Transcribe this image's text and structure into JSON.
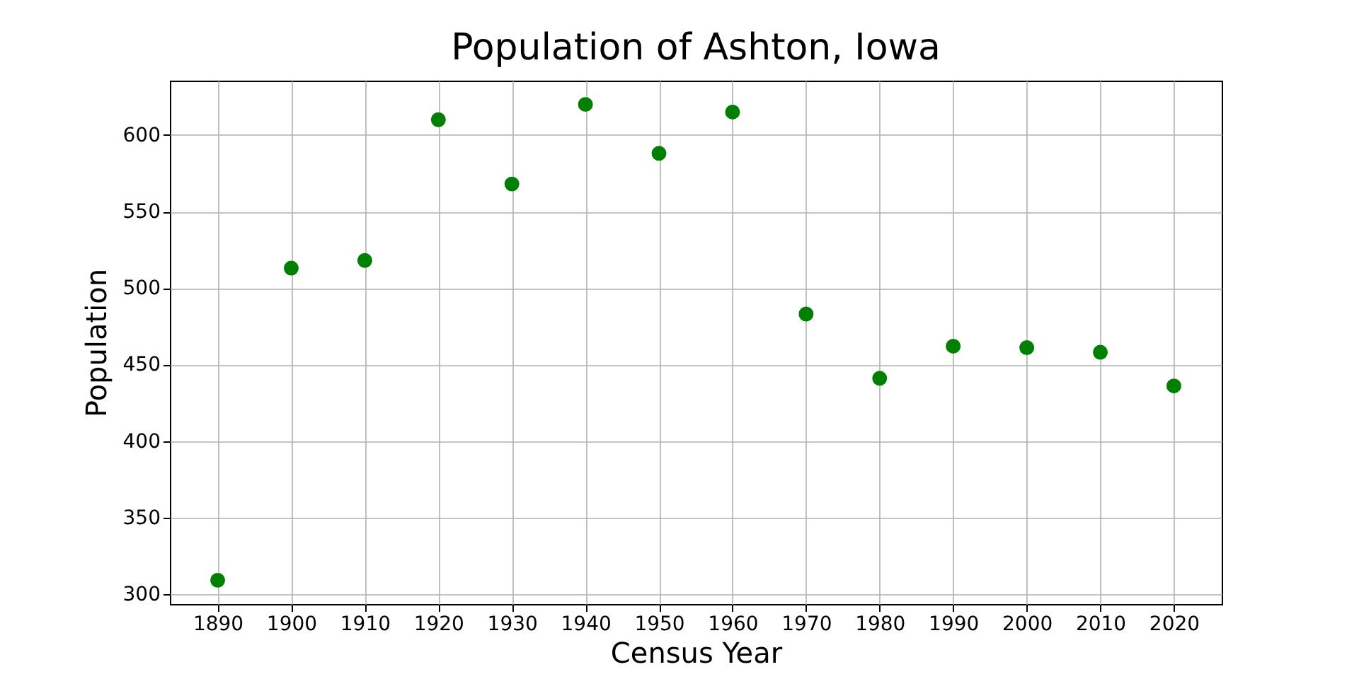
{
  "chart_data": {
    "type": "scatter",
    "title": "Population of Ashton, Iowa",
    "xlabel": "Census Year",
    "ylabel": "Population",
    "x": [
      1890,
      1900,
      1910,
      1920,
      1930,
      1940,
      1950,
      1960,
      1970,
      1980,
      1990,
      2000,
      2010,
      2020
    ],
    "series": [
      {
        "color": "#008000",
        "values": [
          309,
          513,
          518,
          610,
          568,
          620,
          588,
          615,
          483,
          441,
          462,
          461,
          458,
          436
        ]
      }
    ],
    "xlim": [
      1883.5,
      2026.5
    ],
    "xticks": [
      1890,
      1900,
      1910,
      1920,
      1930,
      1940,
      1950,
      1960,
      1970,
      1980,
      1990,
      2000,
      2010,
      2020
    ],
    "ylim": [
      293.45,
      635.55
    ],
    "yticks": [
      300,
      350,
      400,
      450,
      500,
      550,
      600
    ],
    "grid": true,
    "marker": "circle"
  }
}
